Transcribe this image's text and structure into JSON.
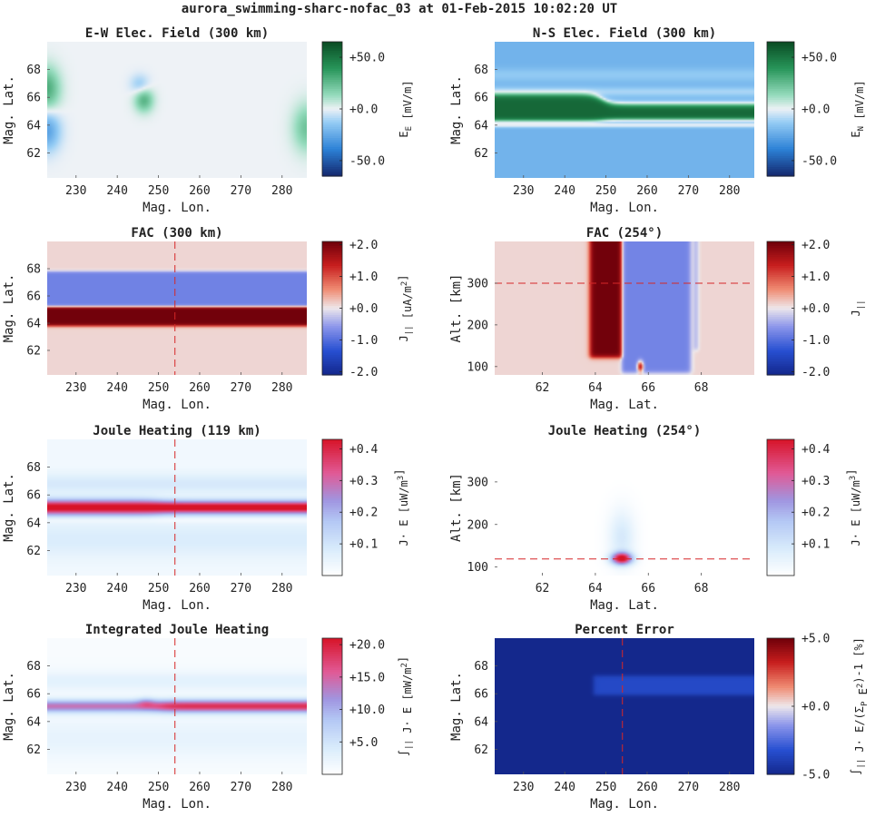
{
  "suptitle": "aurora_swimming-sharc-nofac_03 at 01-Feb-2015 10:02:20 UT",
  "chart_data": [
    {
      "id": "ew_field",
      "type": "heatmap",
      "title": "E-W Elec. Field (300 km)",
      "xlabel": "Mag. Lon.",
      "ylabel": "Mag. Lat.",
      "xlim": [
        223,
        286
      ],
      "ylim": [
        60.2,
        70.0
      ],
      "xticks": [
        230,
        240,
        250,
        260,
        270,
        280
      ],
      "yticks": [
        62,
        64,
        66,
        68
      ],
      "colormap": "blue-white-green",
      "clim": [
        -65,
        65
      ],
      "cbar_ticks": [
        "+50.0",
        "+0.0",
        "-50.0"
      ],
      "cbar_tick_values": [
        50,
        0,
        -50
      ],
      "cbar_label": "E_E [mV/m]",
      "description": "near-zero field everywhere; weak positive lobes at west edge around lat 66-68 and east edge lat 63-65, negative lobe west edge lat 63-65, small dipole near lon 246 lat 66"
    },
    {
      "id": "ns_field",
      "type": "heatmap",
      "title": "N-S Elec. Field (300 km)",
      "xlabel": "Mag. Lon.",
      "ylabel": "Mag. Lat.",
      "xlim": [
        223,
        286
      ],
      "ylim": [
        60.2,
        70.0
      ],
      "xticks": [
        230,
        240,
        250,
        260,
        270,
        280
      ],
      "yticks": [
        62,
        64,
        66,
        68
      ],
      "colormap": "blue-white-green",
      "clim": [
        -65,
        65
      ],
      "cbar_ticks": [
        "+50.0",
        "+0.0",
        "-50.0"
      ],
      "cbar_tick_values": [
        50,
        0,
        -50
      ],
      "cbar_label": "E_N [mV/m]",
      "bands": [
        {
          "lat": [
            60.2,
            63.9
          ],
          "value": -20
        },
        {
          "lat": [
            63.9,
            64.2
          ],
          "value": 0
        },
        {
          "lat": [
            64.3,
            66.2
          ],
          "value": 55,
          "note": "narrows to lat 64.4-65.5 east of lon 248"
        },
        {
          "lat": [
            66.5,
            70.0
          ],
          "value": -22
        }
      ]
    },
    {
      "id": "fac_300",
      "type": "heatmap",
      "title": "FAC (300 km)",
      "xlabel": "Mag. Lon.",
      "ylabel": "Mag. Lat.",
      "xlim": [
        223,
        286
      ],
      "ylim": [
        60.2,
        70.0
      ],
      "xticks": [
        230,
        240,
        250,
        260,
        270,
        280
      ],
      "yticks": [
        62,
        64,
        66,
        68
      ],
      "colormap": "blue-white-red",
      "clim": [
        -2.1,
        2.1
      ],
      "cbar_ticks": [
        "+2.0",
        "+1.0",
        "+0.0",
        "-1.0",
        "-2.0"
      ],
      "cbar_tick_values": [
        2,
        1,
        0,
        -1,
        -2
      ],
      "cbar_label": "J_|| [uA/m^2]",
      "bands": [
        {
          "lat": [
            60.2,
            63.8
          ],
          "value": 0.1
        },
        {
          "lat": [
            63.8,
            65.2
          ],
          "value": 2.0
        },
        {
          "lat": [
            65.2,
            67.8
          ],
          "value": -0.8
        },
        {
          "lat": [
            67.8,
            70.0
          ],
          "value": 0.1
        }
      ],
      "vline_x": 254
    },
    {
      "id": "fac_254",
      "type": "heatmap",
      "title": "FAC (254°)",
      "xlabel": "Mag. Lat.",
      "ylabel": "Alt. [km]",
      "xlim": [
        60.2,
        70.0
      ],
      "ylim": [
        80,
        400
      ],
      "xticks": [
        62,
        64,
        66,
        68
      ],
      "yticks": [
        100,
        200,
        300
      ],
      "colormap": "blue-white-red",
      "clim": [
        -2.1,
        2.1
      ],
      "cbar_ticks": [
        "+2.0",
        "+1.0",
        "+0.0",
        "-1.0",
        "-2.0"
      ],
      "cbar_tick_values": [
        2,
        1,
        0,
        -1,
        -2
      ],
      "cbar_label": "J_||",
      "bands": [
        {
          "lat": [
            63.8,
            65.0
          ],
          "alt_min": 122,
          "value": 2.0
        },
        {
          "lat": [
            65.0,
            67.6
          ],
          "alt_min": 85,
          "value": -0.8
        }
      ],
      "hline_y": 300
    },
    {
      "id": "joule_119",
      "type": "heatmap",
      "title": "Joule Heating (119 km)",
      "xlabel": "Mag. Lon.",
      "ylabel": "Mag. Lat.",
      "xlim": [
        223,
        286
      ],
      "ylim": [
        60.2,
        70.0
      ],
      "xticks": [
        230,
        240,
        250,
        260,
        270,
        280
      ],
      "yticks": [
        62,
        64,
        66,
        68
      ],
      "colormap": "white-blue-red",
      "clim": [
        0,
        0.43
      ],
      "cbar_ticks": [
        "+0.4",
        "+0.3",
        "+0.2",
        "+0.1"
      ],
      "cbar_tick_values": [
        0.4,
        0.3,
        0.2,
        0.1
      ],
      "cbar_label": "J· E [uW/m^3]",
      "peak_lat": 65.1,
      "peak_value": 0.43,
      "vline_x": 254
    },
    {
      "id": "joule_254",
      "type": "heatmap",
      "title": "Joule Heating (254°)",
      "xlabel": "Mag. Lat.",
      "ylabel": "Alt. [km]",
      "xlim": [
        60.2,
        70.0
      ],
      "ylim": [
        80,
        400
      ],
      "xticks": [
        62,
        64,
        66,
        68
      ],
      "yticks": [
        100,
        200,
        300
      ],
      "colormap": "white-blue-red",
      "clim": [
        0,
        0.43
      ],
      "cbar_ticks": [
        "+0.4",
        "+0.3",
        "+0.2",
        "+0.1"
      ],
      "cbar_tick_values": [
        0.4,
        0.3,
        0.2,
        0.1
      ],
      "cbar_label": "J· E [uW/m^3]",
      "peak_lat": 65.0,
      "peak_alt": 120,
      "peak_value": 0.43,
      "hline_y": 119
    },
    {
      "id": "int_joule",
      "type": "heatmap",
      "title": "Integrated Joule Heating",
      "xlabel": "Mag. Lon.",
      "ylabel": "Mag. Lat.",
      "xlim": [
        223,
        286
      ],
      "ylim": [
        60.2,
        70.0
      ],
      "xticks": [
        230,
        240,
        250,
        260,
        270,
        280
      ],
      "yticks": [
        62,
        64,
        66,
        68
      ],
      "colormap": "white-blue-red",
      "clim": [
        0,
        21
      ],
      "cbar_ticks": [
        "+20.0",
        "+15.0",
        "+10.0",
        "+5.0"
      ],
      "cbar_tick_values": [
        20,
        15,
        10,
        5
      ],
      "cbar_label": "∫_|| J· E [mW/m^2]",
      "peak_lat": 65.1,
      "peak_value": 18,
      "vline_x": 254
    },
    {
      "id": "pct_err",
      "type": "heatmap",
      "title": "Percent Error",
      "xlabel": "Mag. Lon.",
      "ylabel": "Mag. Lat.",
      "xlim": [
        223,
        286
      ],
      "ylim": [
        60.2,
        70.0
      ],
      "xticks": [
        230,
        240,
        250,
        260,
        270,
        280
      ],
      "yticks": [
        62,
        64,
        66,
        68
      ],
      "colormap": "blue-white-red",
      "clim": [
        -5,
        5
      ],
      "cbar_ticks": [
        "+5.0",
        "+0.0",
        "-5.0"
      ],
      "cbar_tick_values": [
        5,
        0,
        -5
      ],
      "cbar_label": "∫_|| J· E/(Σ_P E^2)-1 [%]",
      "background_value": -5.0,
      "patch": {
        "lon_min": 247,
        "lat": [
          65.9,
          67.3
        ],
        "value": -3.5
      },
      "vline_x": 254
    }
  ]
}
